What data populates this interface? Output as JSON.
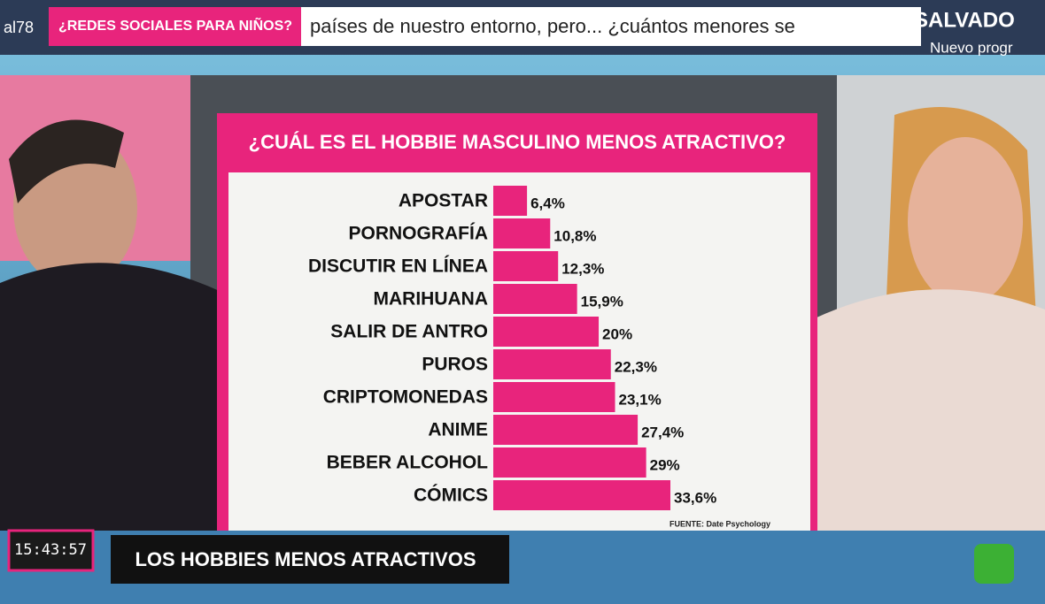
{
  "chart_data": {
    "type": "bar",
    "orientation": "horizontal",
    "title": "¿CUÁL ES EL HOBBIE MASCULINO MENOS ATRACTIVO?",
    "categories": [
      "APOSTAR",
      "PORNOGRAFÍA",
      "DISCUTIR EN LÍNEA",
      "MARIHUANA",
      "SALIR DE ANTRO",
      "PUROS",
      "CRIPTOMONEDAS",
      "ANIME",
      "BEBER ALCOHOL",
      "CÓMICS"
    ],
    "values": [
      6.4,
      10.8,
      12.3,
      15.9,
      20,
      22.3,
      23.1,
      27.4,
      29,
      33.6
    ],
    "value_labels": [
      "6,4%",
      "10,8%",
      "12,3%",
      "15,9%",
      "20%",
      "22,3%",
      "23,1%",
      "27,4%",
      "29%",
      "33,6%"
    ],
    "color": "#e8247c",
    "source": "FUENTE: Date Psychology"
  },
  "screen": {
    "channel": "al78",
    "topic": "¿REDES SOCIALES PARA NIÑOS?",
    "ticker": "países de nuestro entorno, pero... ¿cuántos menores se",
    "program": "SALVADO",
    "program_sub": "Nuevo progr",
    "clock": "15:43:57",
    "caption": "LOS HOBBIES MENOS ATRACTIVOS"
  }
}
